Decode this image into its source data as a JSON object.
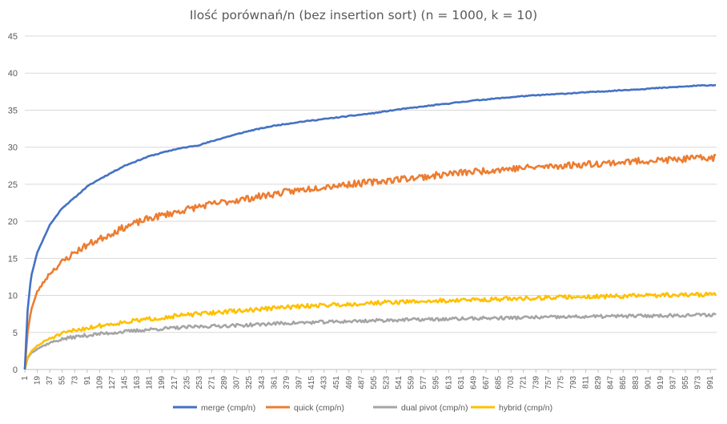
{
  "chart_data": {
    "type": "line",
    "title": "Ilość porównań/n (bez insertion sort) (n = 1000, k = 10)",
    "xlabel": "",
    "ylabel": "",
    "ylim": [
      0,
      45
    ],
    "yticks": [
      "0",
      "5",
      "10",
      "15",
      "20",
      "25",
      "30",
      "35",
      "40",
      "45"
    ],
    "xlim": [
      1,
      1000
    ],
    "xticks": [
      "1",
      "19",
      "37",
      "55",
      "73",
      "91",
      "109",
      "127",
      "145",
      "163",
      "181",
      "199",
      "217",
      "235",
      "253",
      "271",
      "289",
      "307",
      "325",
      "343",
      "361",
      "379",
      "397",
      "415",
      "433",
      "451",
      "469",
      "487",
      "505",
      "523",
      "541",
      "559",
      "577",
      "595",
      "613",
      "631",
      "649",
      "667",
      "685",
      "703",
      "721",
      "739",
      "757",
      "775",
      "793",
      "811",
      "829",
      "847",
      "865",
      "883",
      "901",
      "919",
      "937",
      "955",
      "973",
      "991"
    ],
    "grid": "horizontal",
    "legend_position": "bottom",
    "series": [
      {
        "name": "merge (cmp/n)",
        "color": "#4472c4",
        "x": [
          1,
          5,
          10,
          19,
          37,
          55,
          73,
          91,
          109,
          145,
          181,
          217,
          253,
          289,
          325,
          361,
          397,
          433,
          469,
          505,
          541,
          577,
          613,
          649,
          685,
          721,
          757,
          793,
          829,
          865,
          901,
          937,
          973,
          1000
        ],
        "values": [
          0.0,
          8.0,
          12.5,
          15.8,
          19.5,
          21.8,
          23.2,
          24.7,
          25.7,
          27.5,
          28.8,
          29.7,
          30.3,
          31.3,
          32.2,
          32.9,
          33.4,
          33.8,
          34.2,
          34.6,
          35.1,
          35.5,
          35.9,
          36.3,
          36.6,
          36.9,
          37.1,
          37.3,
          37.5,
          37.7,
          37.9,
          38.1,
          38.3,
          38.4
        ]
      },
      {
        "name": "quick (cmp/n)",
        "color": "#ed7d31",
        "x": [
          1,
          5,
          10,
          19,
          37,
          55,
          73,
          91,
          109,
          145,
          181,
          217,
          253,
          289,
          325,
          361,
          397,
          433,
          469,
          505,
          541,
          577,
          613,
          649,
          685,
          721,
          757,
          793,
          829,
          865,
          901,
          937,
          973,
          1000
        ],
        "values": [
          0.0,
          5.0,
          8.0,
          10.5,
          13.0,
          14.5,
          15.8,
          16.8,
          17.6,
          19.2,
          20.4,
          21.2,
          22.0,
          22.6,
          23.1,
          23.7,
          24.2,
          24.7,
          25.0,
          25.3,
          25.7,
          26.0,
          26.4,
          26.7,
          27.0,
          27.2,
          27.4,
          27.6,
          27.8,
          28.0,
          28.2,
          28.3,
          28.5,
          28.6
        ]
      },
      {
        "name": "dual pivot (cmp/n)",
        "color": "#a5a5a5",
        "x": [
          1,
          5,
          10,
          19,
          37,
          55,
          73,
          91,
          109,
          145,
          181,
          217,
          253,
          289,
          325,
          361,
          397,
          433,
          469,
          505,
          541,
          577,
          613,
          649,
          685,
          721,
          757,
          793,
          829,
          865,
          901,
          937,
          973,
          1000
        ],
        "values": [
          0.0,
          1.5,
          2.2,
          2.8,
          3.6,
          4.1,
          4.4,
          4.6,
          4.8,
          5.1,
          5.4,
          5.6,
          5.8,
          5.9,
          6.0,
          6.2,
          6.3,
          6.4,
          6.5,
          6.6,
          6.7,
          6.75,
          6.8,
          6.9,
          6.95,
          7.0,
          7.05,
          7.1,
          7.15,
          7.2,
          7.25,
          7.3,
          7.35,
          7.4
        ]
      },
      {
        "name": "hybrid (cmp/n)",
        "color": "#ffc000",
        "x": [
          1,
          5,
          10,
          19,
          37,
          55,
          73,
          91,
          109,
          145,
          181,
          217,
          253,
          289,
          325,
          361,
          397,
          433,
          469,
          505,
          541,
          577,
          613,
          649,
          685,
          721,
          757,
          793,
          829,
          865,
          901,
          937,
          973,
          1000
        ],
        "values": [
          0.0,
          1.6,
          2.4,
          3.2,
          4.2,
          4.8,
          5.3,
          5.6,
          5.9,
          6.4,
          6.8,
          7.2,
          7.5,
          7.8,
          8.0,
          8.3,
          8.5,
          8.7,
          8.8,
          9.0,
          9.1,
          9.2,
          9.3,
          9.4,
          9.5,
          9.6,
          9.7,
          9.8,
          9.85,
          9.9,
          10.0,
          10.05,
          10.1,
          10.2
        ]
      }
    ]
  }
}
